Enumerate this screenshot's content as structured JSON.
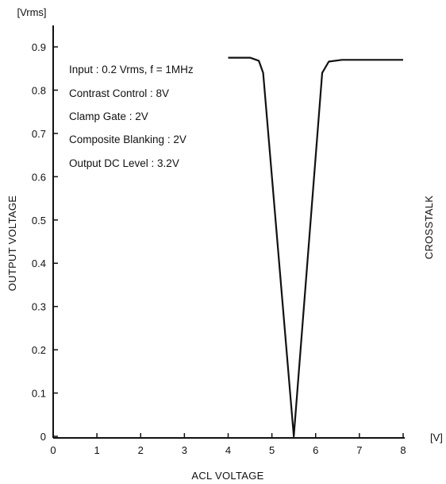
{
  "chart_data": {
    "type": "line",
    "title": "",
    "xlabel": "ACL VOLTAGE",
    "ylabel": "OUTPUT VOLTAGE",
    "x_unit": "[V]",
    "y_unit": "[Vrms]",
    "side_label": "CROSSTALK",
    "xlim": [
      0,
      8
    ],
    "ylim": [
      0,
      0.9
    ],
    "x_ticks": [
      0,
      1,
      2,
      3,
      4,
      5,
      6,
      7,
      8
    ],
    "y_ticks": [
      0,
      0.1,
      0.2,
      0.3,
      0.4,
      0.5,
      0.6,
      0.7,
      0.8,
      0.9
    ],
    "x_tick_labels": [
      "0",
      "1",
      "2",
      "3",
      "4",
      "5",
      "6",
      "7",
      "8"
    ],
    "y_tick_labels": [
      "0",
      "0.1",
      "0.2",
      "0.3",
      "0.4",
      "0.5",
      "0.6",
      "0.7",
      "0.8",
      "0.9"
    ],
    "grid": false,
    "annotations": [
      "Input : 0.2 Vrms, f = 1MHz",
      "Contrast Control : 8V",
      "Clamp Gate : 2V",
      "Composite Blanking : 2V",
      "Output DC Level : 3.2V"
    ],
    "series": [
      {
        "x": [
          4.0,
          4.5,
          4.7,
          4.8,
          5.5,
          6.15,
          6.3,
          6.6,
          8.0
        ],
        "y": [
          0.875,
          0.875,
          0.868,
          0.84,
          0.0,
          0.84,
          0.866,
          0.87,
          0.87
        ]
      }
    ]
  }
}
